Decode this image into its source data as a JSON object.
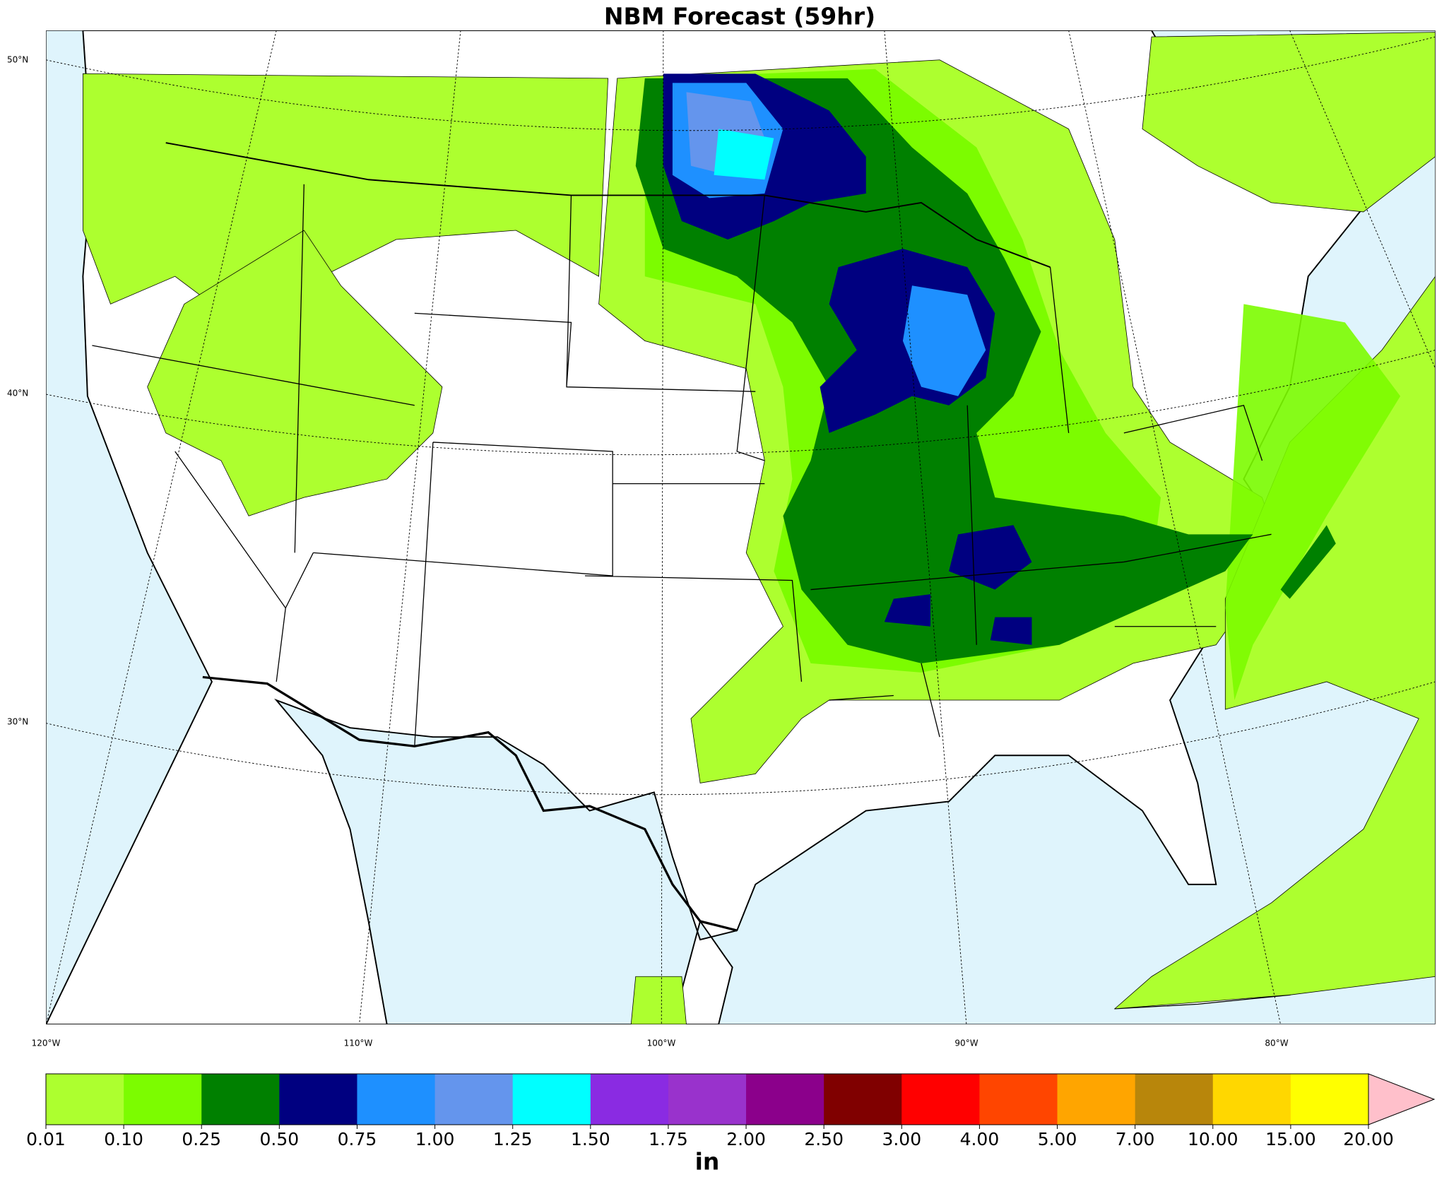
{
  "title": "NBM Forecast (59hr)",
  "lat_labels": [
    "50°N",
    "40°N",
    "30°N"
  ],
  "lon_labels": [
    "120°W",
    "110°W",
    "100°W",
    "90°W",
    "80°W"
  ],
  "colorbar": {
    "levels": [
      "0.01",
      "0.10",
      "0.25",
      "0.50",
      "0.75",
      "1.00",
      "1.25",
      "1.50",
      "1.75",
      "2.00",
      "2.50",
      "3.00",
      "4.00",
      "5.00",
      "7.00",
      "10.00",
      "15.00",
      "20.00"
    ],
    "colors": [
      "#adff2f",
      "#7cfc00",
      "#008000",
      "#000080",
      "#1e90ff",
      "#6495ed",
      "#00ffff",
      "#8a2be2",
      "#9932cc",
      "#8b008b",
      "#800000",
      "#ff0000",
      "#ff4500",
      "#ffa500",
      "#b8860b",
      "#ffd700",
      "#ffff00"
    ],
    "extend_color": "#ffc0cb",
    "label": "in"
  }
}
